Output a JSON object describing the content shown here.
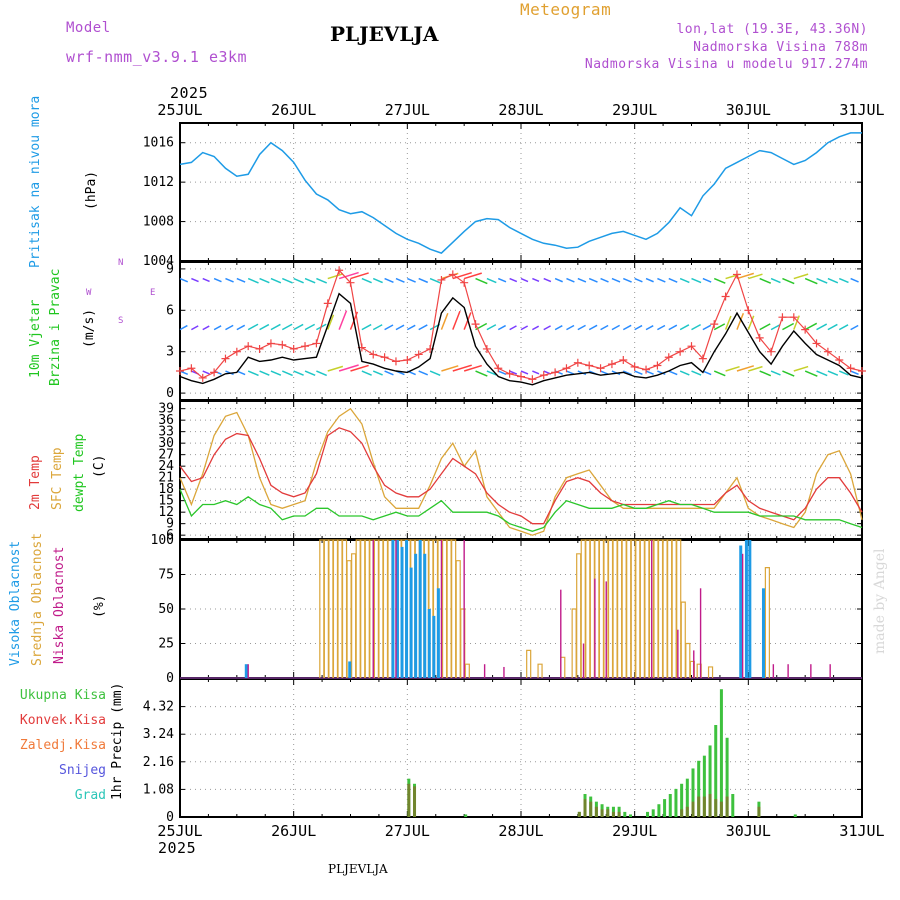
{
  "header": {
    "meteogram": "Meteogram",
    "model_label": "Model",
    "model_name": "wrf-nmm_v3.9.1 e3km",
    "station": "PLJEVLJA",
    "lonlat": "lon,lat (19.3E, 43.36N)",
    "elevation": "Nadmorska Visina 788m",
    "model_elevation": "Nadmorska Visina u modelu 917.274m",
    "year_top": "2025",
    "year_bottom": "2025",
    "watermark": "made by Angel",
    "footer_station": "PLJEVLJA"
  },
  "colors": {
    "pressure": "#1e9be6",
    "temp2m": "#e23b3b",
    "sfc": "#dba63a",
    "dewpt": "#2bc62b",
    "high_cloud": "#1e9be6",
    "mid_cloud": "#dba63a",
    "low_cloud": "#c01b8a",
    "total_precip": "#3ec13e",
    "conv_precip": "#e23b3b",
    "snow": "#5555dd",
    "grad": "#2bc6b8",
    "gust": "#f04545",
    "wind": "#000000",
    "purple_text": "#b050d0",
    "orange_text": "#e0a030"
  },
  "chart_data": [
    {
      "id": "pressure",
      "type": "line",
      "ylabel": "Pritisak na nivou mora",
      "unit": "(hPa)",
      "ylim": [
        1004,
        1018
      ],
      "yticks": [
        1004,
        1008,
        1012,
        1016
      ],
      "x_days": [
        "25JUL",
        "26JUL",
        "27JUL",
        "28JUL",
        "29JUL",
        "30JUL",
        "31JUL"
      ],
      "x": [
        0,
        0.1,
        0.2,
        0.3,
        0.4,
        0.5,
        0.6,
        0.7,
        0.8,
        0.9,
        1.0,
        1.1,
        1.2,
        1.3,
        1.4,
        1.5,
        1.6,
        1.7,
        1.8,
        1.9,
        2.0,
        2.1,
        2.2,
        2.3,
        2.4,
        2.5,
        2.6,
        2.7,
        2.8,
        2.9,
        3.0,
        3.1,
        3.2,
        3.3,
        3.4,
        3.5,
        3.6,
        3.7,
        3.8,
        3.9,
        4.0,
        4.1,
        4.2,
        4.3,
        4.4,
        4.5,
        4.6,
        4.7,
        4.8,
        4.9,
        5.0,
        5.1,
        5.2,
        5.3,
        5.4,
        5.5,
        5.6,
        5.7,
        5.8,
        5.9,
        6.0
      ],
      "values": [
        1013.8,
        1014.0,
        1015.0,
        1014.6,
        1013.4,
        1012.6,
        1012.8,
        1014.8,
        1016.0,
        1015.2,
        1014.0,
        1012.2,
        1010.8,
        1010.2,
        1009.2,
        1008.8,
        1009.0,
        1008.4,
        1007.6,
        1006.8,
        1006.2,
        1005.8,
        1005.2,
        1004.8,
        1005.9,
        1007.0,
        1008.0,
        1008.3,
        1008.2,
        1007.4,
        1006.8,
        1006.2,
        1005.8,
        1005.6,
        1005.3,
        1005.4,
        1006.0,
        1006.4,
        1006.8,
        1007.0,
        1006.6,
        1006.2,
        1006.8,
        1007.9,
        1009.4,
        1008.6,
        1010.6,
        1011.8,
        1013.4,
        1014.0,
        1014.6,
        1015.2,
        1015.0,
        1014.4,
        1013.8,
        1014.2,
        1015.0,
        1016.0,
        1016.6,
        1017.0,
        1017.0
      ]
    },
    {
      "id": "wind",
      "type": "line",
      "ylabel": [
        "10m Vjetar",
        "Brzina i Pravac"
      ],
      "unit": "(m/s)",
      "compass": [
        "N",
        "W",
        "E",
        "S"
      ],
      "ylim": [
        -0.5,
        9.5
      ],
      "yticks": [
        0,
        3,
        6,
        9
      ],
      "x": [
        0,
        0.1,
        0.2,
        0.3,
        0.4,
        0.5,
        0.6,
        0.7,
        0.8,
        0.9,
        1.0,
        1.1,
        1.2,
        1.3,
        1.4,
        1.5,
        1.6,
        1.7,
        1.8,
        1.9,
        2.0,
        2.1,
        2.2,
        2.3,
        2.4,
        2.5,
        2.6,
        2.7,
        2.8,
        2.9,
        3.0,
        3.1,
        3.2,
        3.3,
        3.4,
        3.5,
        3.6,
        3.7,
        3.8,
        3.9,
        4.0,
        4.1,
        4.2,
        4.3,
        4.4,
        4.5,
        4.6,
        4.7,
        4.8,
        4.9,
        5.0,
        5.1,
        5.2,
        5.3,
        5.4,
        5.5,
        5.6,
        5.7,
        5.8,
        5.9,
        6.0
      ],
      "speed": [
        1.2,
        0.9,
        0.7,
        1.0,
        1.4,
        1.5,
        2.6,
        2.3,
        2.4,
        2.6,
        2.4,
        2.5,
        2.6,
        4.9,
        7.2,
        6.5,
        2.3,
        2.1,
        1.8,
        1.6,
        1.5,
        1.9,
        2.5,
        5.8,
        6.9,
        6.2,
        3.4,
        2.1,
        1.2,
        0.9,
        0.8,
        0.6,
        0.9,
        1.1,
        1.3,
        1.4,
        1.5,
        1.3,
        1.4,
        1.5,
        1.2,
        1.1,
        1.3,
        1.6,
        2.0,
        2.2,
        1.5,
        3.0,
        4.3,
        5.8,
        4.4,
        3.0,
        2.1,
        3.4,
        4.5,
        3.6,
        2.8,
        2.4,
        2.0,
        1.3,
        1.1
      ],
      "gust": [
        1.6,
        1.8,
        1.1,
        1.5,
        2.5,
        3.0,
        3.4,
        3.2,
        3.6,
        3.5,
        3.2,
        3.4,
        3.6,
        6.5,
        8.9,
        8.0,
        3.3,
        2.8,
        2.6,
        2.3,
        2.4,
        2.8,
        3.2,
        8.2,
        8.6,
        8.0,
        5.0,
        3.2,
        1.8,
        1.4,
        1.2,
        1.0,
        1.3,
        1.5,
        1.8,
        2.2,
        2.0,
        1.8,
        2.1,
        2.4,
        1.9,
        1.7,
        2.0,
        2.6,
        3.0,
        3.4,
        2.5,
        5.0,
        7.0,
        8.6,
        6.0,
        4.0,
        3.0,
        5.5,
        5.5,
        4.6,
        3.6,
        3.0,
        2.4,
        1.8,
        1.6
      ]
    },
    {
      "id": "temperature",
      "type": "line",
      "ylabel": [
        "2m Temp",
        "SFC Temp",
        "dewpt Temp"
      ],
      "unit": "(C)",
      "ylim": [
        5,
        41
      ],
      "yticks": [
        6,
        9,
        12,
        15,
        18,
        21,
        24,
        27,
        30,
        33,
        36,
        39
      ],
      "x": [
        0,
        0.1,
        0.2,
        0.3,
        0.4,
        0.5,
        0.6,
        0.7,
        0.8,
        0.9,
        1.0,
        1.1,
        1.2,
        1.3,
        1.4,
        1.5,
        1.6,
        1.7,
        1.8,
        1.9,
        2.0,
        2.1,
        2.2,
        2.3,
        2.4,
        2.5,
        2.6,
        2.7,
        2.8,
        2.9,
        3.0,
        3.1,
        3.2,
        3.3,
        3.4,
        3.5,
        3.6,
        3.7,
        3.8,
        3.9,
        4.0,
        4.1,
        4.2,
        4.3,
        4.4,
        4.5,
        4.6,
        4.7,
        4.8,
        4.9,
        5.0,
        5.1,
        5.2,
        5.3,
        5.4,
        5.5,
        5.6,
        5.7,
        5.8,
        5.9,
        6.0
      ],
      "t2m": [
        24,
        20,
        21,
        27,
        31,
        32.5,
        32,
        26,
        19,
        17,
        16,
        17,
        22,
        32,
        34,
        33,
        30,
        24,
        19,
        17,
        16,
        16,
        18,
        22,
        26,
        24,
        22,
        17,
        14,
        12,
        11,
        9,
        9,
        15,
        20,
        21,
        20,
        17,
        15,
        14,
        14,
        14,
        14,
        14,
        14,
        14,
        14,
        14,
        17,
        19,
        15,
        13,
        12,
        11,
        10,
        13,
        18,
        21,
        21,
        17,
        12
      ],
      "sfc": [
        21,
        14,
        22,
        32,
        37,
        38,
        32,
        21,
        14,
        13,
        14,
        15,
        25,
        33,
        37,
        39,
        35,
        25,
        16,
        13,
        13,
        13,
        19,
        26,
        30,
        24,
        28,
        16,
        12,
        8,
        7,
        6,
        7,
        16,
        21,
        22,
        23,
        19,
        15,
        13,
        13,
        13,
        13,
        13,
        13,
        13,
        13,
        13,
        17,
        21,
        13,
        11,
        10,
        9,
        8,
        12,
        22,
        27,
        28,
        22,
        10
      ],
      "dewpt": [
        18,
        11,
        14,
        14,
        15,
        14,
        16,
        14,
        13,
        10,
        11,
        11,
        13,
        13,
        11,
        11,
        11,
        10,
        11,
        12,
        11,
        11,
        13,
        15,
        12,
        12,
        12,
        12,
        11,
        9,
        8,
        7,
        8,
        12,
        15,
        14,
        13,
        13,
        13,
        14,
        13,
        13,
        14,
        15,
        14,
        14,
        13,
        12,
        12,
        12,
        12,
        11,
        11,
        11,
        11,
        10,
        10,
        10,
        10,
        9,
        8
      ]
    },
    {
      "id": "clouds",
      "type": "bar",
      "ylabel": [
        "Visoka Oblacnost",
        "Srednja Oblacnost",
        "Niska Oblacnost"
      ],
      "unit": "(%)",
      "ylim": [
        0,
        100
      ],
      "yticks": [
        0,
        25,
        50,
        75,
        100
      ],
      "mid": [
        [
          1.23,
          100
        ],
        [
          1.27,
          100
        ],
        [
          1.31,
          100
        ],
        [
          1.35,
          100
        ],
        [
          1.39,
          100
        ],
        [
          1.43,
          100
        ],
        [
          1.47,
          85
        ],
        [
          1.51,
          90
        ],
        [
          1.55,
          100
        ],
        [
          1.59,
          100
        ],
        [
          1.63,
          100
        ],
        [
          1.67,
          100
        ],
        [
          1.71,
          100
        ],
        [
          1.75,
          100
        ],
        [
          1.79,
          100
        ],
        [
          1.83,
          100
        ],
        [
          1.87,
          100
        ],
        [
          1.91,
          100
        ],
        [
          1.95,
          100
        ],
        [
          1.99,
          100
        ],
        [
          2.03,
          100
        ],
        [
          2.07,
          100
        ],
        [
          2.11,
          100
        ],
        [
          2.15,
          100
        ],
        [
          2.19,
          100
        ],
        [
          2.23,
          100
        ],
        [
          2.27,
          100
        ],
        [
          2.31,
          100
        ],
        [
          2.35,
          100
        ],
        [
          2.39,
          100
        ],
        [
          2.43,
          85
        ],
        [
          2.47,
          50
        ],
        [
          2.51,
          10
        ],
        [
          3.05,
          20
        ],
        [
          3.15,
          10
        ],
        [
          3.35,
          15
        ],
        [
          3.45,
          50
        ],
        [
          3.49,
          90
        ],
        [
          3.53,
          100
        ],
        [
          3.57,
          100
        ],
        [
          3.61,
          100
        ],
        [
          3.65,
          100
        ],
        [
          3.69,
          100
        ],
        [
          3.73,
          100
        ],
        [
          3.77,
          100
        ],
        [
          3.81,
          100
        ],
        [
          3.85,
          100
        ],
        [
          3.89,
          100
        ],
        [
          3.93,
          100
        ],
        [
          3.97,
          100
        ],
        [
          4.01,
          100
        ],
        [
          4.05,
          100
        ],
        [
          4.09,
          100
        ],
        [
          4.13,
          100
        ],
        [
          4.17,
          100
        ],
        [
          4.21,
          100
        ],
        [
          4.25,
          100
        ],
        [
          4.29,
          100
        ],
        [
          4.33,
          100
        ],
        [
          4.37,
          100
        ],
        [
          4.41,
          55
        ],
        [
          4.45,
          25
        ],
        [
          4.49,
          12
        ],
        [
          4.55,
          10
        ],
        [
          4.65,
          8
        ],
        [
          5.15,
          80
        ]
      ],
      "high": [
        [
          0.57,
          10
        ],
        [
          1.48,
          12
        ],
        [
          1.86,
          100
        ],
        [
          1.9,
          100
        ],
        [
          1.94,
          95
        ],
        [
          1.98,
          100
        ],
        [
          2.02,
          80
        ],
        [
          2.06,
          90
        ],
        [
          2.1,
          100
        ],
        [
          2.14,
          90
        ],
        [
          2.18,
          50
        ],
        [
          2.22,
          45
        ],
        [
          2.26,
          65
        ],
        [
          4.92,
          96
        ],
        [
          4.97,
          100
        ],
        [
          5.0,
          100
        ],
        [
          5.12,
          65
        ]
      ],
      "low": [
        [
          0.6,
          10
        ],
        [
          1.7,
          100
        ],
        [
          1.9,
          100
        ],
        [
          2.3,
          100
        ],
        [
          2.5,
          100
        ],
        [
          2.68,
          10
        ],
        [
          2.85,
          8
        ],
        [
          3.35,
          64
        ],
        [
          3.55,
          25
        ],
        [
          3.65,
          72
        ],
        [
          3.75,
          70
        ],
        [
          4.15,
          100
        ],
        [
          4.38,
          35
        ],
        [
          4.52,
          20
        ],
        [
          4.58,
          65
        ],
        [
          4.95,
          90
        ],
        [
          5.22,
          10
        ],
        [
          5.35,
          10
        ],
        [
          5.55,
          10
        ],
        [
          5.72,
          10
        ]
      ]
    },
    {
      "id": "precip",
      "type": "bar",
      "ylabel": [
        "Ukupna Kisa",
        "Konvek.Kisa",
        "Zaledj.Kisa",
        "Snijeg",
        "Grad"
      ],
      "unit_label": "1hr Precip (mm)",
      "ylim": [
        0,
        5.4
      ],
      "yticks": [
        0,
        1.08,
        2.16,
        3.24,
        4.32
      ],
      "total": [
        [
          2.0,
          1.5
        ],
        [
          2.05,
          1.3
        ],
        [
          2.5,
          0.1
        ],
        [
          3.5,
          0.2
        ],
        [
          3.55,
          0.9
        ],
        [
          3.6,
          0.8
        ],
        [
          3.65,
          0.6
        ],
        [
          3.7,
          0.5
        ],
        [
          3.75,
          0.4
        ],
        [
          3.8,
          0.4
        ],
        [
          3.85,
          0.4
        ],
        [
          3.9,
          0.2
        ],
        [
          3.95,
          0.1
        ],
        [
          4.1,
          0.2
        ],
        [
          4.15,
          0.3
        ],
        [
          4.2,
          0.5
        ],
        [
          4.25,
          0.7
        ],
        [
          4.3,
          0.9
        ],
        [
          4.35,
          1.1
        ],
        [
          4.4,
          1.3
        ],
        [
          4.45,
          1.5
        ],
        [
          4.5,
          1.9
        ],
        [
          4.55,
          2.2
        ],
        [
          4.6,
          2.4
        ],
        [
          4.65,
          2.8
        ],
        [
          4.7,
          3.6
        ],
        [
          4.75,
          5.0
        ],
        [
          4.8,
          3.1
        ],
        [
          4.85,
          0.9
        ],
        [
          5.08,
          0.6
        ],
        [
          5.4,
          0.1
        ]
      ],
      "conv": [
        [
          2.0,
          1.3
        ],
        [
          2.05,
          1.2
        ],
        [
          3.5,
          0.2
        ],
        [
          3.55,
          0.7
        ],
        [
          3.6,
          0.6
        ],
        [
          3.65,
          0.4
        ],
        [
          3.7,
          0.3
        ],
        [
          3.75,
          0.3
        ],
        [
          3.8,
          0.2
        ],
        [
          3.85,
          0.2
        ],
        [
          4.4,
          0.3
        ],
        [
          4.45,
          0.4
        ],
        [
          4.5,
          0.6
        ],
        [
          4.55,
          0.8
        ],
        [
          4.6,
          0.8
        ],
        [
          4.65,
          0.9
        ],
        [
          4.7,
          0.7
        ],
        [
          4.75,
          0.6
        ],
        [
          4.8,
          0.8
        ],
        [
          5.08,
          0.4
        ]
      ]
    }
  ]
}
